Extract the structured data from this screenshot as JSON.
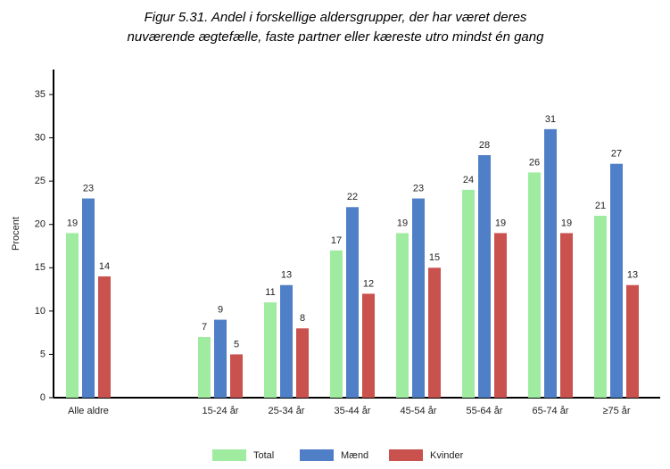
{
  "chart_data": {
    "type": "bar",
    "title": [
      "Figur 5.31. Andel i forskellige aldersgrupper, der har været deres",
      "nuværende ægtefælle, faste partner eller kæreste utro mindst én gang"
    ],
    "y_label": "Procent",
    "categories": [
      "Alle aldre",
      null,
      "15-24 år",
      "25-34 år",
      "35-44 år",
      "45-54 år",
      "55-64 år",
      "65-74 år",
      "≥75 år"
    ],
    "series": [
      {
        "name": "Total",
        "color": "#9fecA0",
        "values": [
          19,
          null,
          7,
          11,
          17,
          19,
          24,
          26,
          21
        ]
      },
      {
        "name": "Mænd",
        "color": "#4f7fc6",
        "values": [
          23,
          null,
          9,
          13,
          22,
          23,
          28,
          31,
          27
        ]
      },
      {
        "name": "Kvinder",
        "color": "#c9524e",
        "values": [
          14,
          null,
          5,
          8,
          12,
          15,
          19,
          19,
          13
        ]
      }
    ],
    "ylim": [
      0,
      35
    ],
    "yticks": [
      0,
      5,
      10,
      15,
      20,
      25,
      30,
      35
    ],
    "grid": false,
    "legend": "bottom"
  }
}
